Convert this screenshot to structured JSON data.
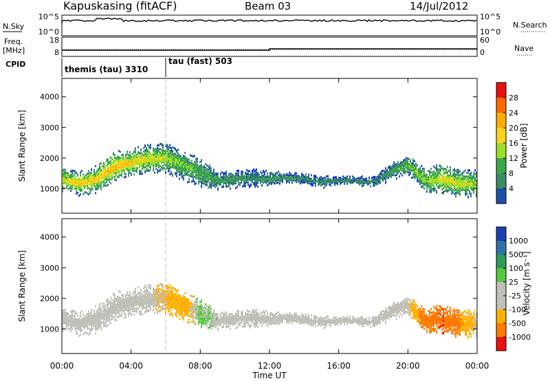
{
  "header": {
    "station": "Kapuskasing (fitACF)",
    "beam": "Beam 03",
    "date": "14/Jul/2012"
  },
  "time_axis": {
    "label": "Time UT",
    "ticks": [
      "00:00",
      "04:00",
      "08:00",
      "12:00",
      "16:00",
      "20:00",
      "00:00"
    ],
    "hours": [
      0,
      4,
      8,
      12,
      16,
      20,
      24
    ]
  },
  "top_panel": {
    "left_labels": [
      "N.Sky",
      "Freq.",
      "[MHz]",
      "CPID"
    ],
    "right_labels": [
      "N.Search",
      "Nave"
    ],
    "sky_ticks": [
      "10^5",
      "10^0"
    ],
    "search_ticks": [
      "10^5",
      "10^0"
    ],
    "freq_ticks": [
      "18",
      "8"
    ],
    "nave_ticks": [
      "60",
      "0"
    ],
    "cpid_segments": [
      {
        "text": "themis (tau) 3310",
        "start_hour": 0
      },
      {
        "text": "tau (fast) 503",
        "start_hour": 6
      }
    ]
  },
  "panels": {
    "yaxis_label": "Slant Range [km]",
    "yticks": [
      "1000",
      "2000",
      "3000",
      "4000"
    ],
    "ytick_values": [
      1000,
      2000,
      3000,
      4000
    ],
    "ylim": [
      200,
      4600
    ]
  },
  "power_colorbar": {
    "label": "Power [dB]",
    "ticks": [
      "28",
      "24",
      "20",
      "16",
      "12",
      "8",
      "4"
    ],
    "colors": [
      "#e81010",
      "#ff6a00",
      "#ffae00",
      "#ffd21c",
      "#9adf2a",
      "#3aa84a",
      "#3a8c66",
      "#1e4fa8",
      "#1020ff"
    ]
  },
  "velocity_colorbar": {
    "label": "Velocity [m s⁻¹]",
    "ticks": [
      "1000",
      "500",
      "100",
      "25",
      "-25",
      "-100",
      "-500",
      "-1000"
    ],
    "colors": [
      "#1d3fb0",
      "#2f74a8",
      "#2f9a5a",
      "#55c840",
      "#c0c0b8",
      "#c0c0b8",
      "#ffb000",
      "#ff7a00",
      "#e81010"
    ]
  },
  "chart_data": {
    "type": "heatmap",
    "title": "Kapuskasing (fitACF)",
    "xlabel": "Time UT",
    "ylabel": "Slant Range [km]",
    "xlim": [
      0,
      24
    ],
    "ylim": [
      200,
      4600
    ],
    "echo_band_hours": [
      0,
      1,
      2,
      3,
      4,
      5,
      6,
      7,
      8,
      9,
      10,
      11,
      12,
      13,
      14,
      15,
      16,
      17,
      18,
      19,
      20,
      21,
      22,
      23,
      24
    ],
    "echo_band_center_km": [
      1350,
      1200,
      1350,
      1750,
      1900,
      2000,
      2050,
      1800,
      1550,
      1300,
      1350,
      1400,
      1350,
      1400,
      1350,
      1250,
      1300,
      1300,
      1250,
      1600,
      1800,
      1300,
      1350,
      1200,
      1200
    ],
    "echo_band_width_km": [
      400,
      400,
      450,
      500,
      450,
      500,
      500,
      500,
      500,
      300,
      300,
      300,
      250,
      200,
      200,
      200,
      150,
      150,
      200,
      300,
      300,
      400,
      500,
      450,
      450
    ],
    "power_db": [
      18,
      20,
      20,
      22,
      20,
      18,
      16,
      14,
      12,
      10,
      10,
      8,
      10,
      8,
      8,
      8,
      8,
      8,
      8,
      10,
      14,
      16,
      18,
      18,
      16
    ],
    "velocity_ms": [
      0,
      0,
      0,
      0,
      0,
      0,
      -100,
      -200,
      100,
      0,
      0,
      0,
      0,
      0,
      0,
      0,
      0,
      0,
      0,
      0,
      0,
      -500,
      -700,
      -300,
      0
    ]
  }
}
